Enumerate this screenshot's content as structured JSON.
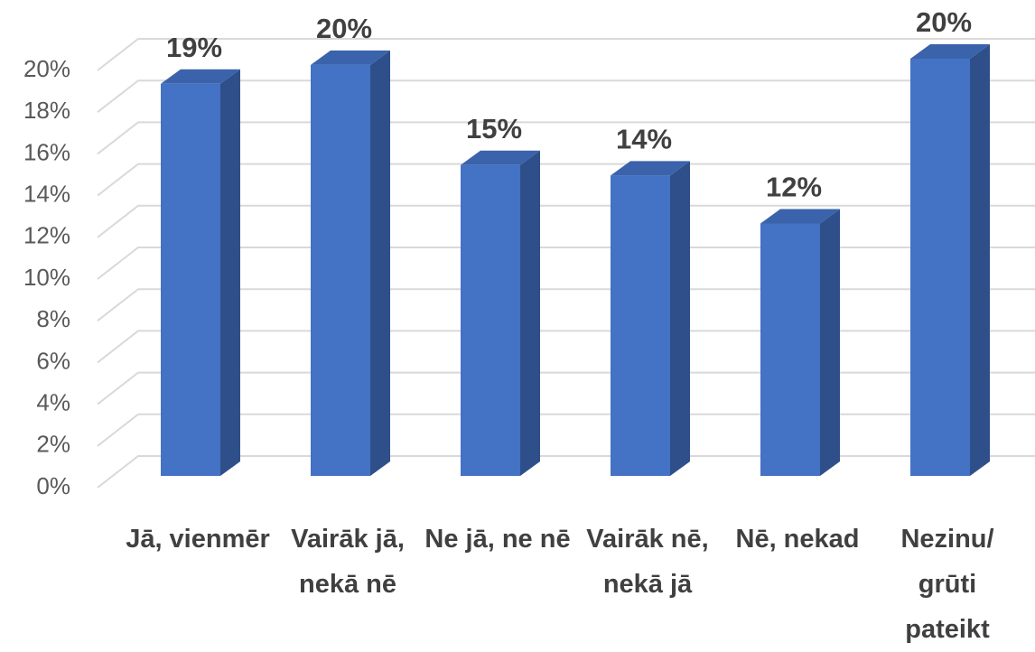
{
  "chart_data": {
    "type": "bar3d",
    "categories": [
      "Jā, vienmēr",
      "Vairāk jā, nekā nē",
      "Ne jā, ne nē",
      "Vairāk nē, nekā jā",
      "Nē, nekad",
      "Nezinu/ grūti pateikt"
    ],
    "values": [
      18.8,
      19.7,
      14.9,
      14.4,
      12.1,
      20.0
    ],
    "value_labels": [
      "19%",
      "20%",
      "15%",
      "14%",
      "12%",
      "20%"
    ],
    "color": "#4472c4",
    "ylim": [
      0,
      20
    ],
    "yticks": [
      {
        "value": 0,
        "label": "0%"
      },
      {
        "value": 2,
        "label": "2%"
      },
      {
        "value": 4,
        "label": "4%"
      },
      {
        "value": 6,
        "label": "6%"
      },
      {
        "value": 8,
        "label": "8%"
      },
      {
        "value": 10,
        "label": "10%"
      },
      {
        "value": 12,
        "label": "12%"
      },
      {
        "value": 14,
        "label": "14%"
      },
      {
        "value": 16,
        "label": "16%"
      },
      {
        "value": 18,
        "label": "18%"
      },
      {
        "value": 20,
        "label": "20%"
      }
    ],
    "grid": true
  }
}
